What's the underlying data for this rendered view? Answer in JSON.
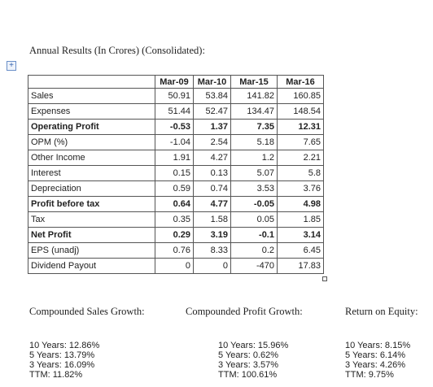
{
  "header": {
    "title": "Annual Results (In Crores) (Consolidated):"
  },
  "table": {
    "columns": [
      "Mar-09",
      "Mar-10",
      "Mar-15",
      "Mar-16"
    ],
    "rows": [
      {
        "label": "Sales",
        "values": [
          "50.91",
          "53.84",
          "141.82",
          "160.85"
        ],
        "bold": false
      },
      {
        "label": "Expenses",
        "values": [
          "51.44",
          "52.47",
          "134.47",
          "148.54"
        ],
        "bold": false
      },
      {
        "label": "Operating Profit",
        "values": [
          "-0.53",
          "1.37",
          "7.35",
          "12.31"
        ],
        "bold": true
      },
      {
        "label": "OPM (%)",
        "values": [
          "-1.04",
          "2.54",
          "5.18",
          "7.65"
        ],
        "bold": false
      },
      {
        "label": "Other Income",
        "values": [
          "1.91",
          "4.27",
          "1.2",
          "2.21"
        ],
        "bold": false
      },
      {
        "label": "Interest",
        "values": [
          "0.15",
          "0.13",
          "5.07",
          "5.8"
        ],
        "bold": false
      },
      {
        "label": "Depreciation",
        "values": [
          "0.59",
          "0.74",
          "3.53",
          "3.76"
        ],
        "bold": false
      },
      {
        "label": "Profit before tax",
        "values": [
          "0.64",
          "4.77",
          "-0.05",
          "4.98"
        ],
        "bold": true
      },
      {
        "label": "Tax",
        "values": [
          "0.35",
          "1.58",
          "0.05",
          "1.85"
        ],
        "bold": false
      },
      {
        "label": "Net Profit",
        "values": [
          "0.29",
          "3.19",
          "-0.1",
          "3.14"
        ],
        "bold": true
      },
      {
        "label": "EPS (unadj)",
        "values": [
          "0.76",
          "8.33",
          "0.2",
          "6.45"
        ],
        "bold": false
      },
      {
        "label": "Dividend Payout",
        "values": [
          "0",
          "0",
          "-470",
          "17.83"
        ],
        "bold": false
      }
    ]
  },
  "sections": [
    {
      "title": "Compounded Sales Growth:",
      "items": [
        "10 Years: 12.86%",
        "5 Years: 13.79%",
        "3 Years: 16.09%",
        "TTM: 11.82%"
      ]
    },
    {
      "title": "Compounded Profit Growth:",
      "items": [
        "10 Years: 15.96%",
        "5 Years: 0.62%",
        "3 Years: 3.57%",
        "TTM: 100.61%"
      ]
    },
    {
      "title": "Return on Equity:",
      "items": [
        "10 Years: 8.15%",
        "5 Years: 6.14%",
        "3 Years: 4.26%",
        "TTM: 9.75%"
      ]
    }
  ]
}
